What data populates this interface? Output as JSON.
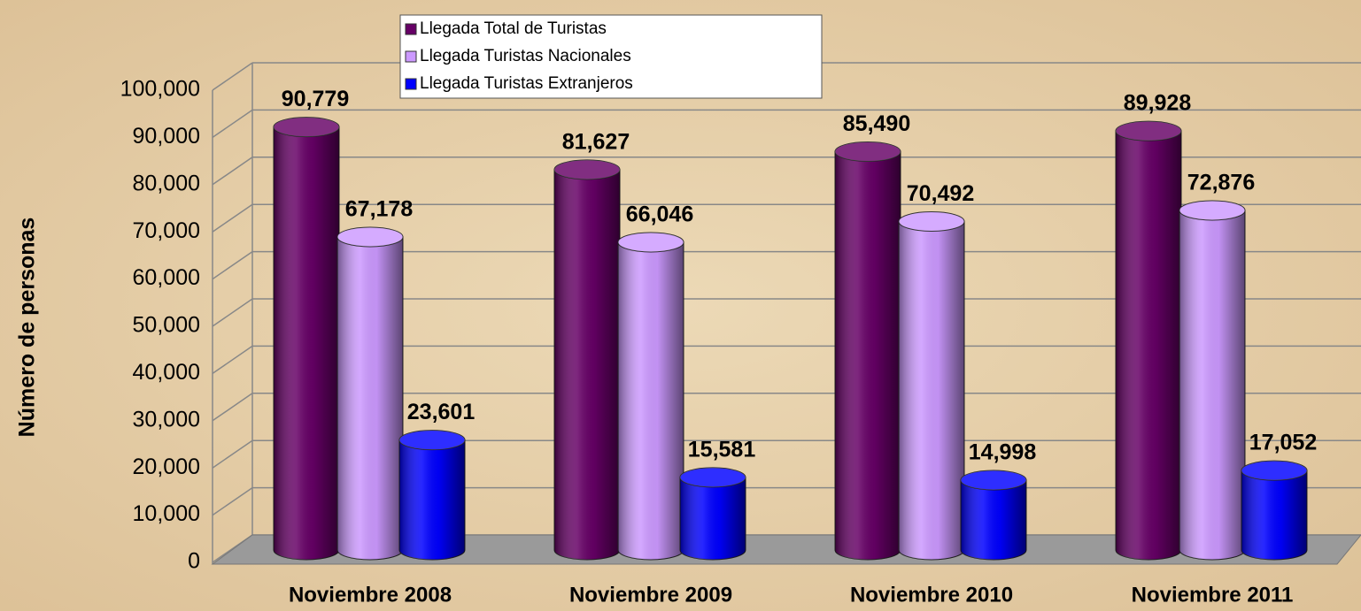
{
  "chart_data": {
    "type": "bar3d",
    "y_label": "Número de personas",
    "categories": [
      "Noviembre 2008",
      "Noviembre 2009",
      "Noviembre 2010",
      "Noviembre 2011"
    ],
    "series": [
      {
        "name": "Llegada Total de Turistas",
        "color": "#660066",
        "values": [
          90779,
          81627,
          85490,
          89928
        ],
        "value_labels": [
          "90,779",
          "81,627",
          "85,490",
          "89,928"
        ]
      },
      {
        "name": "Llegada Turistas Nacionales",
        "color": "#cc99ff",
        "values": [
          67178,
          66046,
          70492,
          72876
        ],
        "value_labels": [
          "67,178",
          "66,046",
          "70,492",
          "72,876"
        ]
      },
      {
        "name": "Llegada Turistas Extranjeros",
        "color": "#0000ff",
        "values": [
          23601,
          15581,
          14998,
          17052
        ],
        "value_labels": [
          "23,601",
          "15,581",
          "14,998",
          "17,052"
        ]
      }
    ],
    "ylim": [
      0,
      100000
    ],
    "yticks": [
      0,
      {
        "value": 10000,
        "label": "10,000"
      },
      {
        "value": 20000,
        "label": "20,000"
      },
      {
        "value": 30000,
        "label": "30,000"
      },
      {
        "value": 40000,
        "label": "40,000"
      },
      {
        "value": 50000,
        "label": "50,000"
      },
      {
        "value": 60000,
        "label": "60,000"
      },
      {
        "value": 70000,
        "label": "70,000"
      },
      {
        "value": 80000,
        "label": "80,000"
      },
      {
        "value": 90000,
        "label": "90,000"
      },
      {
        "value": 100000,
        "label": "100,000"
      }
    ],
    "grid": true
  }
}
